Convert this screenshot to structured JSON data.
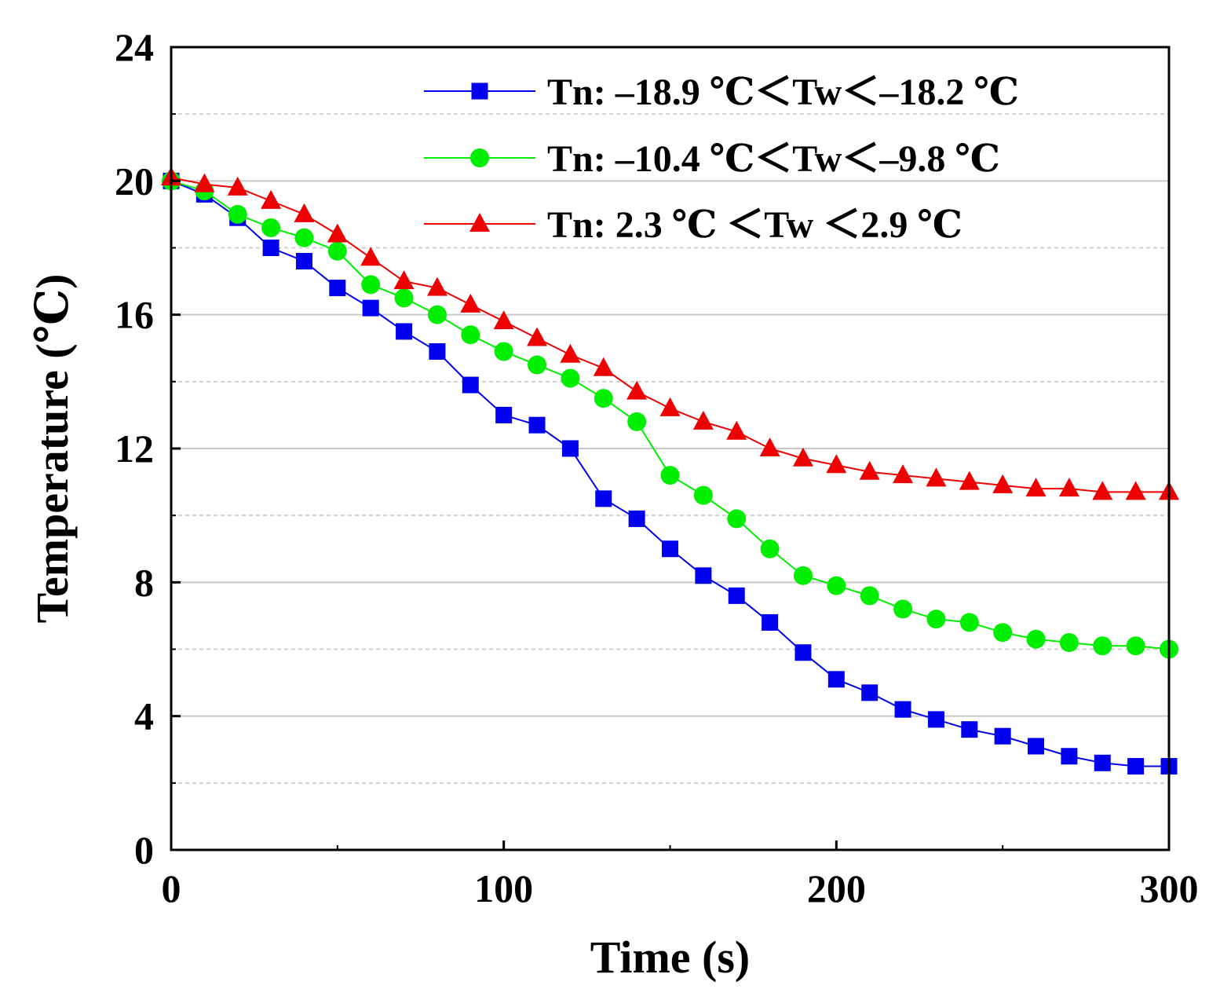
{
  "chart_data": {
    "type": "line",
    "xlabel": "Time (s)",
    "ylabel": "Temperature (℃)",
    "xlim": [
      0,
      300
    ],
    "ylim": [
      0,
      24
    ],
    "x_ticks": [
      0,
      100,
      200,
      300
    ],
    "y_ticks": [
      0,
      4,
      8,
      12,
      16,
      20,
      24
    ],
    "grid": true,
    "legend_position": "top-right",
    "x": [
      0,
      10,
      20,
      30,
      40,
      50,
      60,
      70,
      80,
      90,
      100,
      110,
      120,
      130,
      140,
      150,
      160,
      170,
      180,
      190,
      200,
      210,
      220,
      230,
      240,
      250,
      260,
      270,
      280,
      290,
      300
    ],
    "series": [
      {
        "name": "Tn: –18.9 ℃＜Tw＜–18.2 ℃",
        "color": "#0000ee",
        "marker": "square",
        "values": [
          20.0,
          19.6,
          18.9,
          18.0,
          17.6,
          16.8,
          16.2,
          15.5,
          14.9,
          13.9,
          13.0,
          12.7,
          12.0,
          10.5,
          9.9,
          9.0,
          8.2,
          7.6,
          6.8,
          5.9,
          5.1,
          4.7,
          4.2,
          3.9,
          3.6,
          3.4,
          3.1,
          2.8,
          2.6,
          2.5,
          2.5
        ]
      },
      {
        "name": "Tn: –10.4 ℃＜Tw＜–9.8 ℃",
        "color": "#00ee00",
        "marker": "circle",
        "values": [
          20.0,
          19.7,
          19.0,
          18.6,
          18.3,
          17.9,
          16.9,
          16.5,
          16.0,
          15.4,
          14.9,
          14.5,
          14.1,
          13.5,
          12.8,
          11.2,
          10.6,
          9.9,
          9.0,
          8.2,
          7.9,
          7.6,
          7.2,
          6.9,
          6.8,
          6.5,
          6.3,
          6.2,
          6.1,
          6.1,
          6.0
        ]
      },
      {
        "name": "Tn: 2.3 ℃ ＜Tw ＜2.9 ℃",
        "color": "#ee0000",
        "marker": "triangle",
        "values": [
          20.1,
          19.9,
          19.8,
          19.4,
          19.0,
          18.4,
          17.7,
          17.0,
          16.8,
          16.3,
          15.8,
          15.3,
          14.8,
          14.4,
          13.7,
          13.2,
          12.8,
          12.5,
          12.0,
          11.7,
          11.5,
          11.3,
          11.2,
          11.1,
          11.0,
          10.9,
          10.8,
          10.8,
          10.7,
          10.7,
          10.7
        ]
      }
    ]
  }
}
